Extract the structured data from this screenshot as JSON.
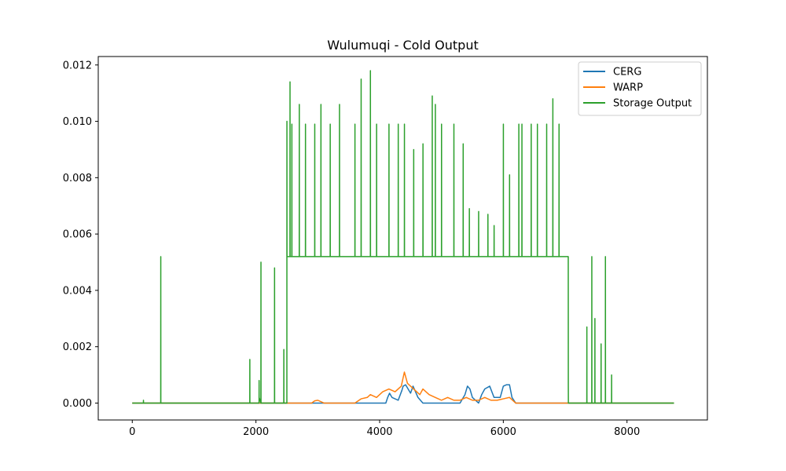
{
  "chart_data": {
    "type": "line",
    "title": "Wulumuqi - Cold Output",
    "xlabel": "",
    "ylabel": "",
    "xlim": [
      -550,
      9300
    ],
    "ylim": [
      -0.0006,
      0.0123
    ],
    "x_ticks": [
      0,
      2000,
      4000,
      6000,
      8000
    ],
    "x_tick_labels": [
      "0",
      "2000",
      "4000",
      "6000",
      "8000"
    ],
    "y_ticks": [
      0.0,
      0.002,
      0.004,
      0.006,
      0.008,
      0.01,
      0.012
    ],
    "y_tick_labels": [
      "0.000",
      "0.002",
      "0.004",
      "0.006",
      "0.008",
      "0.010",
      "0.012"
    ],
    "grid": false,
    "legend_position": "top-right",
    "series": [
      {
        "name": "CERG",
        "color": "#1f77b4",
        "x": [
          0,
          4100,
          4130,
          4160,
          4200,
          4300,
          4360,
          4380,
          4420,
          4460,
          4500,
          4540,
          4580,
          4620,
          4700,
          5300,
          5380,
          5420,
          5460,
          5500,
          5600,
          5650,
          5700,
          5780,
          5850,
          5950,
          6000,
          6050,
          6100,
          6140,
          6200,
          8760
        ],
        "y": [
          0,
          0,
          0.0002,
          0.00035,
          0.0002,
          0.0001,
          0.00045,
          0.0006,
          0.00065,
          0.0005,
          0.00035,
          0.0006,
          0.0004,
          0.0002,
          0,
          0,
          0.0003,
          0.0006,
          0.0005,
          0.0002,
          0,
          0.0003,
          0.0005,
          0.0006,
          0.0002,
          0.0002,
          0.0006,
          0.00065,
          0.00065,
          0.0002,
          0,
          0
        ]
      },
      {
        "name": "WARP",
        "color": "#ff7f0e",
        "x": [
          0,
          2900,
          2950,
          3000,
          3100,
          3600,
          3700,
          3800,
          3850,
          3950,
          4050,
          4150,
          4250,
          4350,
          4400,
          4450,
          4550,
          4650,
          4700,
          4800,
          4900,
          5000,
          5100,
          5200,
          5300,
          5400,
          5500,
          5600,
          5700,
          5800,
          5900,
          6000,
          6100,
          6200,
          8760
        ],
        "y": [
          0,
          0,
          8e-05,
          0.0001,
          0,
          0,
          0.00015,
          0.0002,
          0.0003,
          0.0002,
          0.0004,
          0.0005,
          0.0004,
          0.0006,
          0.0011,
          0.0007,
          0.0005,
          0.0003,
          0.0005,
          0.0003,
          0.0002,
          0.0001,
          0.0002,
          0.0001,
          0.0001,
          0.0002,
          0.0001,
          0.0001,
          0.0002,
          0.0001,
          0.0001,
          0.00015,
          0.0002,
          0,
          0
        ]
      },
      {
        "name": "Storage Output",
        "color": "#2ca02c",
        "x": [
          0,
          180,
          181,
          182,
          460,
          461,
          462,
          1900,
          1901,
          1902,
          2050,
          2051,
          2052,
          2080,
          2081,
          2082,
          2300,
          2301,
          2302,
          2450,
          2451,
          2452,
          2500,
          2501,
          2502,
          2550,
          2551,
          2552,
          2580,
          2581,
          2582,
          2700,
          2701,
          2702,
          2800,
          2801,
          2802,
          2950,
          2951,
          2952,
          3050,
          3051,
          3052,
          3200,
          3201,
          3202,
          3350,
          3351,
          3352,
          3600,
          3601,
          3602,
          3700,
          3701,
          3702,
          3850,
          3851,
          3852,
          3950,
          3951,
          3952,
          4150,
          4151,
          4152,
          4300,
          4301,
          4302,
          4400,
          4401,
          4402,
          4550,
          4551,
          4552,
          4700,
          4701,
          4702,
          4850,
          4851,
          4852,
          4900,
          4901,
          4902,
          5000,
          5001,
          5002,
          5200,
          5201,
          5202,
          5350,
          5351,
          5352,
          5450,
          5451,
          5452,
          5600,
          5601,
          5602,
          5750,
          5751,
          5752,
          5850,
          5851,
          5852,
          6000,
          6001,
          6002,
          6100,
          6101,
          6102,
          6250,
          6251,
          6252,
          6300,
          6301,
          6302,
          6450,
          6451,
          6452,
          6550,
          6551,
          6552,
          6700,
          6701,
          6702,
          6800,
          6801,
          6802,
          6900,
          6901,
          6902,
          7050,
          7051,
          7052,
          7350,
          7351,
          7352,
          7430,
          7431,
          7432,
          7480,
          7481,
          7482,
          7580,
          7581,
          7582,
          7650,
          7651,
          7652,
          7750,
          7751,
          7752,
          8760
        ],
        "y": [
          0,
          0,
          0.0001,
          0,
          0,
          0.0052,
          0,
          0,
          0.00155,
          0,
          0,
          0.0008,
          0.0002,
          0,
          0.005,
          0,
          0,
          0.0048,
          0,
          0,
          0.0019,
          0,
          0,
          0.01,
          0.0052,
          0.0052,
          0.0114,
          0.0052,
          0.0052,
          0.0099,
          0.0052,
          0.0052,
          0.0106,
          0.0052,
          0.0052,
          0.0099,
          0.0052,
          0.0052,
          0.0099,
          0.0052,
          0.0052,
          0.0106,
          0.0052,
          0.0052,
          0.0099,
          0.0052,
          0.0052,
          0.0106,
          0.0052,
          0.0052,
          0.0099,
          0.0052,
          0.0052,
          0.0115,
          0.0052,
          0.0052,
          0.0118,
          0.0052,
          0.0052,
          0.0099,
          0.0052,
          0.0052,
          0.0099,
          0.0052,
          0.0052,
          0.0099,
          0.0052,
          0.0052,
          0.0099,
          0.0052,
          0.0052,
          0.009,
          0.0052,
          0.0052,
          0.0092,
          0.0052,
          0.0052,
          0.0109,
          0.0052,
          0.0052,
          0.0106,
          0.0052,
          0.0052,
          0.0099,
          0.0052,
          0.0052,
          0.0099,
          0.0052,
          0.0052,
          0.0092,
          0.0052,
          0.0052,
          0.0069,
          0.0052,
          0.0052,
          0.0068,
          0.0052,
          0.0052,
          0.0067,
          0.0052,
          0.0052,
          0.0063,
          0.0052,
          0.0052,
          0.0099,
          0.0052,
          0.0052,
          0.0081,
          0.0052,
          0.0052,
          0.0099,
          0.0052,
          0.0052,
          0.0099,
          0.0052,
          0.0052,
          0.0099,
          0.0052,
          0.0052,
          0.0099,
          0.0052,
          0.0052,
          0.0099,
          0.0052,
          0.0052,
          0.0108,
          0.0052,
          0.0052,
          0.0099,
          0.0052,
          0.0052,
          0.0006,
          0,
          0,
          0.0027,
          0,
          0,
          0.0052,
          0,
          0,
          0.003,
          0,
          0,
          0.0021,
          0,
          0,
          0.0052,
          0,
          0,
          0.001,
          0,
          0
        ]
      }
    ]
  }
}
